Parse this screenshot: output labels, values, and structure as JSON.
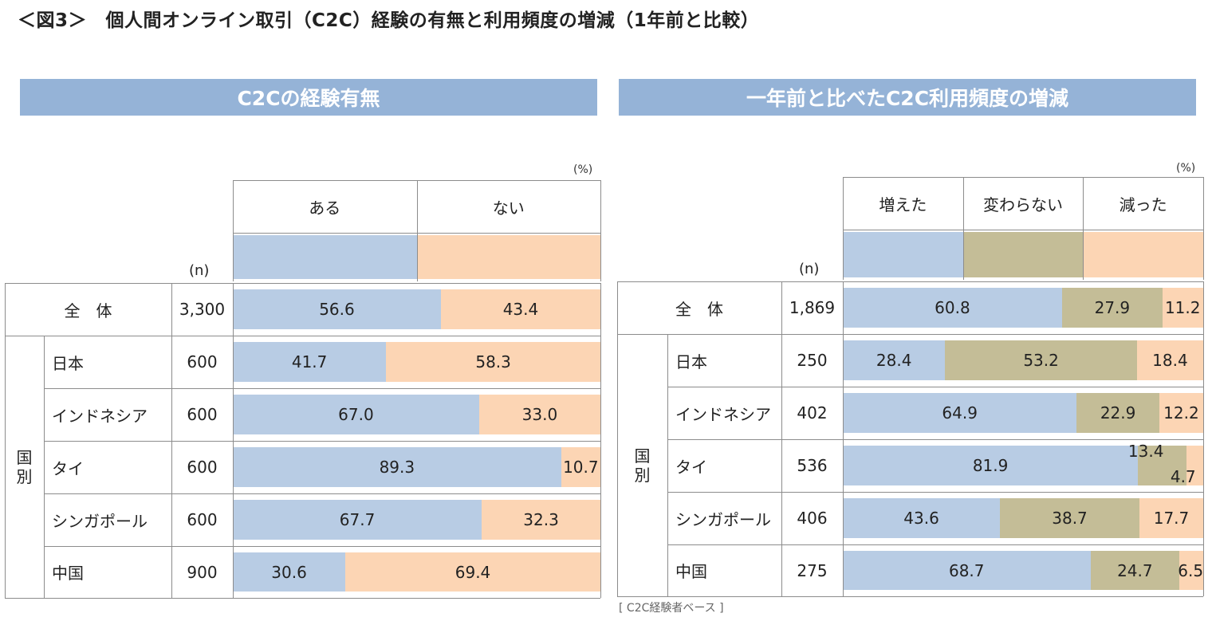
{
  "title": "＜図3＞　個人間オンライン取引（C2C）経験の有無と利用頻度の増減（1年前と比較）",
  "percent_unit": "(%)",
  "n_header": "(n)",
  "total_label": "全　体",
  "group_label": "国別",
  "note": "[ C2C経験者ベース ]",
  "colors": {
    "blue": "#b8cce4",
    "tan": "#c4bd97",
    "peach": "#fcd5b4",
    "banner": "#95b3d7"
  },
  "chart_data": [
    {
      "type": "bar",
      "title": "C2Cの経験有無",
      "categories": [
        "全　体",
        "日本",
        "インドネシア",
        "タイ",
        "シンガポール",
        "中国"
      ],
      "n": [
        "3,300",
        "600",
        "600",
        "600",
        "600",
        "900"
      ],
      "series": [
        {
          "name": "ある",
          "values": [
            56.6,
            41.7,
            67.0,
            89.3,
            67.7,
            30.6
          ]
        },
        {
          "name": "ない",
          "values": [
            43.4,
            58.3,
            33.0,
            10.7,
            32.3,
            69.4
          ]
        }
      ],
      "stacked": true,
      "orientation": "horizontal",
      "xlim": [
        0,
        100
      ]
    },
    {
      "type": "bar",
      "title": "一年前と比べたC2C利用頻度の増減",
      "categories": [
        "全　体",
        "日本",
        "インドネシア",
        "タイ",
        "シンガポール",
        "中国"
      ],
      "n": [
        "1,869",
        "250",
        "402",
        "536",
        "406",
        "275"
      ],
      "series": [
        {
          "name": "増えた",
          "values": [
            60.8,
            28.4,
            64.9,
            81.9,
            43.6,
            68.7
          ]
        },
        {
          "name": "変わらない",
          "values": [
            27.9,
            53.2,
            22.9,
            13.4,
            38.7,
            24.7
          ]
        },
        {
          "name": "減った",
          "values": [
            11.2,
            18.4,
            12.2,
            4.7,
            17.7,
            6.5
          ]
        }
      ],
      "stacked": true,
      "orientation": "horizontal",
      "xlim": [
        0,
        100
      ]
    }
  ]
}
